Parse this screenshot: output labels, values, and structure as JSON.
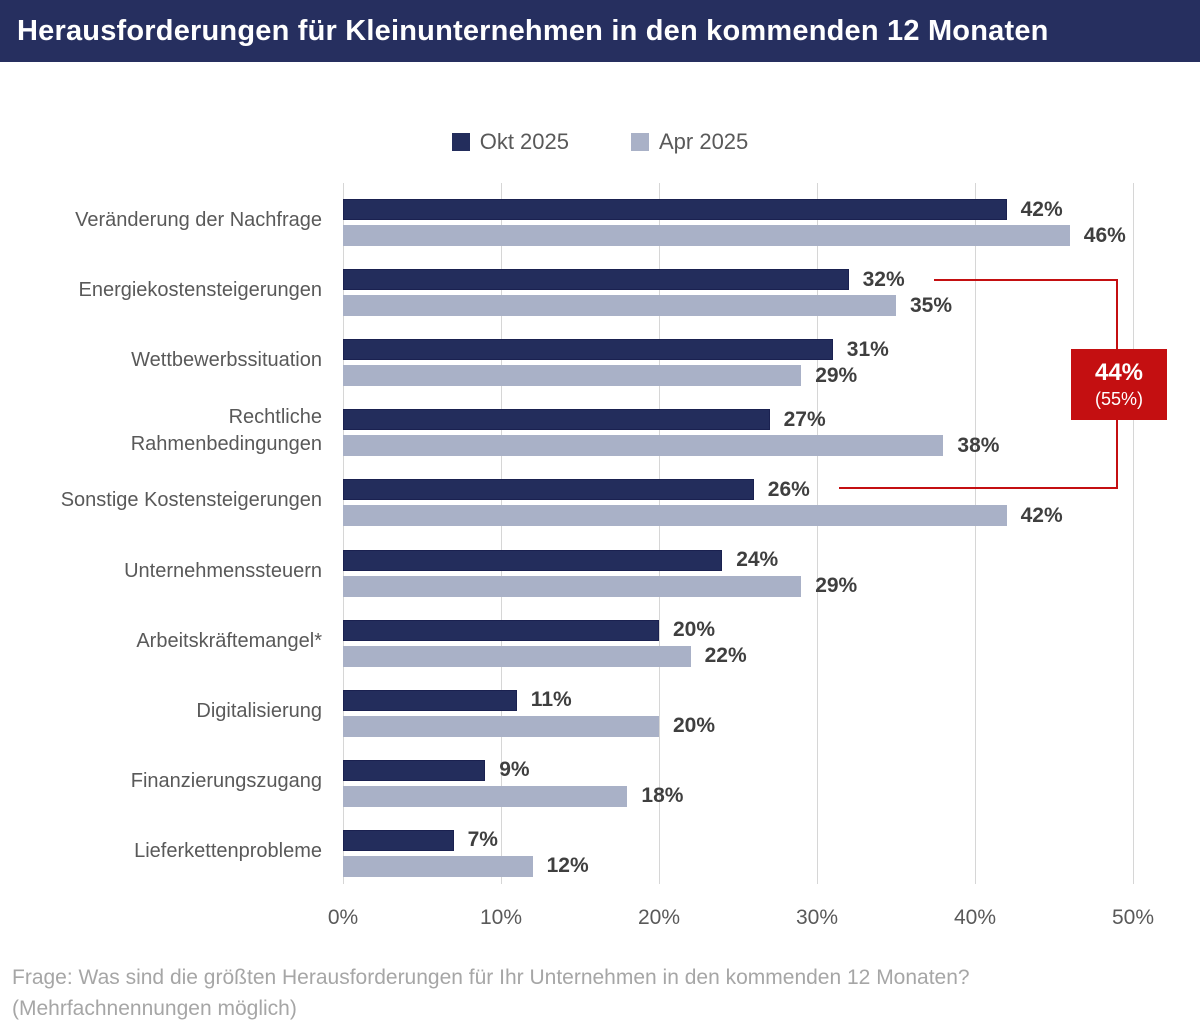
{
  "header": {
    "title": "Herausforderungen für Kleinunternehmen in den kommenden 12 Monaten",
    "bg_color": "#262F5F",
    "text_color": "#FFFFFF"
  },
  "colors": {
    "bar_okt": "#232D5C",
    "bar_okt_border": "#1A2150",
    "bar_apr": "#A9B1C7",
    "highlight_red": "#C40F11",
    "gridline": "#D6D6D6",
    "category_label": "#595959",
    "value_label": "#3F3F3F",
    "tick_label": "#595959",
    "footer_text": "#A6A6A6"
  },
  "chart_data": {
    "type": "bar",
    "orientation": "horizontal",
    "title": "Herausforderungen für Kleinunternehmen in den kommenden 12 Monaten",
    "categories": [
      "Veränderung der Nachfrage",
      "Energiekostensteigerungen",
      "Wettbewerbssituation",
      "Rechtliche\nRahmenbedingungen",
      "Sonstige Kostensteigerungen",
      "Unternehmenssteuern",
      "Arbeitskräftemangel*",
      "Digitalisierung",
      "Finanzierungszugang",
      "Lieferkettenprobleme"
    ],
    "series": [
      {
        "name": "Okt 2025",
        "color": "#232D5C",
        "values": [
          42,
          32,
          31,
          27,
          26,
          24,
          20,
          11,
          9,
          7
        ]
      },
      {
        "name": "Apr 2025",
        "color": "#A9B1C7",
        "values": [
          46,
          35,
          29,
          38,
          42,
          29,
          22,
          20,
          18,
          12
        ]
      }
    ],
    "value_suffix": "%",
    "xlim": [
      0,
      50
    ],
    "x_ticks": [
      "0%",
      "10%",
      "20%",
      "30%",
      "40%",
      "50%"
    ],
    "grid": true,
    "legend_position": "top-center",
    "annotation": {
      "label": "44%",
      "sublabel": "(55%)",
      "color": "#C40F11",
      "connects": [
        "Energiekostensteigerungen (Okt 2025, 32%)",
        "Sonstige Kostensteigerungen (Okt 2025, 26%)"
      ]
    }
  },
  "footer": {
    "line1": "Frage: Was sind die größten Herausforderungen für Ihr Unternehmen in den kommenden 12 Monaten?",
    "line2": "(Mehrfachnennungen möglich)"
  }
}
